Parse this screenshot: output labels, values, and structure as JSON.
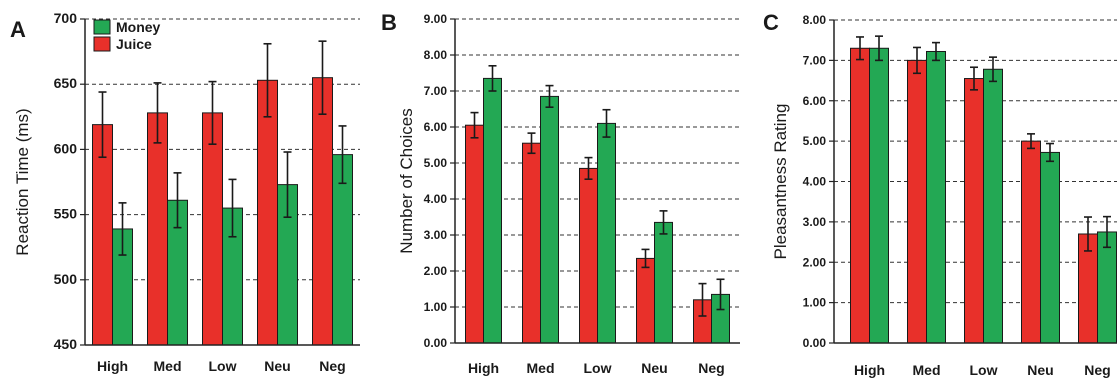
{
  "colors": {
    "juice": "#e8302a",
    "money": "#23a854",
    "axis": "#222222",
    "grid": "#333333"
  },
  "chart_data": [
    {
      "type": "bar",
      "panel": "A",
      "categories": [
        "High",
        "Med",
        "Low",
        "Neu",
        "Neg"
      ],
      "series": [
        {
          "name": "Juice",
          "values": [
            619,
            628,
            628,
            653,
            655
          ],
          "errors": [
            25,
            23,
            24,
            28,
            28
          ]
        },
        {
          "name": "Money",
          "values": [
            539,
            561,
            555,
            573,
            596
          ],
          "errors": [
            20,
            21,
            22,
            25,
            22
          ]
        }
      ],
      "xlabel": "",
      "ylabel": "Reaction Time (ms)",
      "ylim": [
        450,
        700
      ],
      "yticks": [
        "450",
        "500",
        "550",
        "600",
        "650",
        "700"
      ],
      "grid": "dashed horizontal",
      "legend": "top-left"
    },
    {
      "type": "bar",
      "panel": "B",
      "categories": [
        "High",
        "Med",
        "Low",
        "Neu",
        "Neg"
      ],
      "series": [
        {
          "values": [
            6.05,
            5.55,
            4.85,
            2.35,
            1.2
          ],
          "errors": [
            0.35,
            0.28,
            0.3,
            0.25,
            0.45
          ]
        },
        {
          "values": [
            7.35,
            6.85,
            6.1,
            3.35,
            1.35
          ],
          "errors": [
            0.35,
            0.3,
            0.38,
            0.32,
            0.42
          ]
        }
      ],
      "xlabel": "",
      "ylabel": "Number of Choices",
      "ylim": [
        0,
        9
      ],
      "yticks": [
        "0.00",
        "1.00",
        "2.00",
        "3.00",
        "4.00",
        "5.00",
        "6.00",
        "7.00",
        "8.00",
        "9.00"
      ],
      "grid": "dashed horizontal"
    },
    {
      "type": "bar",
      "panel": "C",
      "categories": [
        "High",
        "Med",
        "Low",
        "Neu",
        "Neg"
      ],
      "series": [
        {
          "values": [
            7.3,
            7.0,
            6.55,
            5.0,
            2.7
          ],
          "errors": [
            0.28,
            0.32,
            0.28,
            0.18,
            0.42
          ]
        },
        {
          "values": [
            7.3,
            7.22,
            6.78,
            4.72,
            2.75
          ],
          "errors": [
            0.3,
            0.22,
            0.3,
            0.22,
            0.38
          ]
        }
      ],
      "xlabel": "",
      "ylabel": "Pleasantness Rating",
      "ylim": [
        0,
        8
      ],
      "yticks": [
        "0.00",
        "1.00",
        "2.00",
        "3.00",
        "4.00",
        "5.00",
        "6.00",
        "7.00",
        "8.00"
      ],
      "grid": "dashed horizontal"
    }
  ]
}
